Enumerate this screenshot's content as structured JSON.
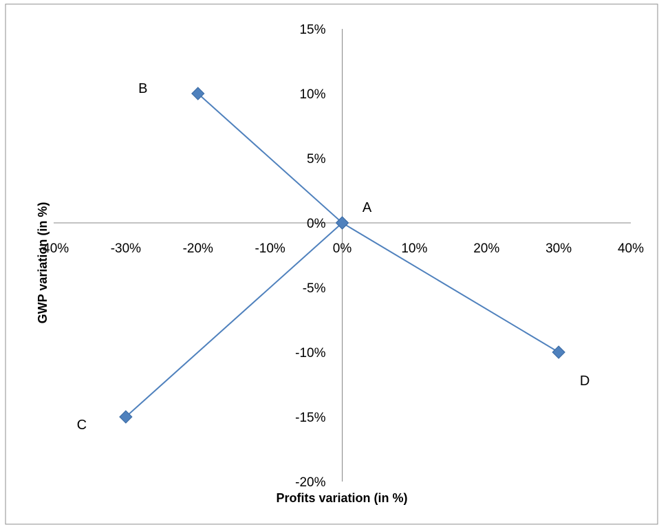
{
  "chart_data": {
    "type": "scatter",
    "xlabel": "Profits variation (in %)",
    "ylabel": "GWP variation (in %)",
    "xlim": [
      -40,
      40
    ],
    "ylim": [
      -20,
      15
    ],
    "x_ticks": [
      -40,
      -30,
      -20,
      -10,
      0,
      10,
      20,
      30,
      40
    ],
    "y_ticks": [
      15,
      10,
      5,
      0,
      -5,
      -10,
      -15,
      -20
    ],
    "x_tick_labels": [
      "-40%",
      "-30%",
      "-20%",
      "-10%",
      "0%",
      "10%",
      "20%",
      "30%",
      "40%"
    ],
    "y_tick_labels": [
      "15%",
      "10%",
      "5%",
      "0%",
      "-5%",
      "-10%",
      "-15%",
      "-20%"
    ],
    "grid": false,
    "axes_cross_at_zero": true,
    "marker": "diamond",
    "color": "#4f81bd",
    "series": [
      {
        "points": [
          {
            "x": -20,
            "y": 10,
            "label": "B"
          },
          {
            "x": 0,
            "y": 0,
            "label": "A"
          },
          {
            "x": 30,
            "y": -10,
            "label": "D"
          }
        ]
      },
      {
        "points": [
          {
            "x": -30,
            "y": -15,
            "label": "C"
          },
          {
            "x": 0,
            "y": 0,
            "label": "A"
          }
        ]
      }
    ]
  }
}
